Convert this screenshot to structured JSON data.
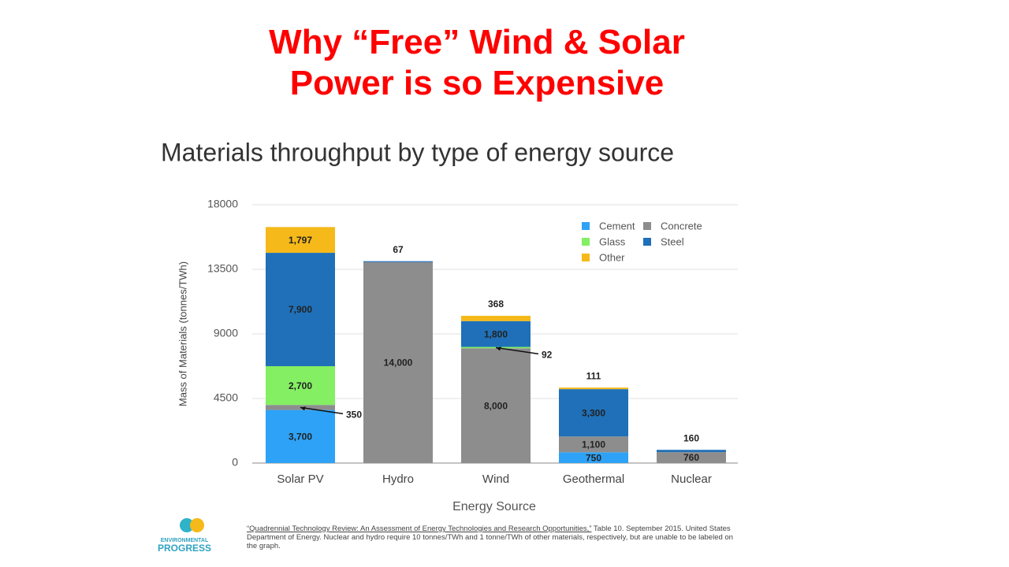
{
  "heading": [
    "Why “Free” Wind & Solar",
    "Power is so Expensive"
  ],
  "chart_data": {
    "type": "stacked-bar",
    "title": "Materials throughput by type of energy source",
    "x_label": "Energy Source",
    "y_label": "Mass of Materials (tonnes/TWh)",
    "categories": [
      "Solar PV",
      "Hydro",
      "Wind",
      "Geothermal",
      "Nuclear"
    ],
    "series": [
      {
        "name": "Cement",
        "color": "#2ea2f6",
        "values": [
          3700,
          null,
          null,
          750,
          null
        ],
        "value_labels": [
          "3,700",
          null,
          null,
          "750",
          null
        ]
      },
      {
        "name": "Concrete",
        "color": "#8d8d8d",
        "values": [
          350,
          14000,
          8000,
          1100,
          760
        ],
        "value_labels": [
          "350",
          "14,000",
          "8,000",
          "1,100",
          "760"
        ]
      },
      {
        "name": "Glass",
        "color": "#84ef62",
        "values": [
          2700,
          null,
          92,
          null,
          null
        ],
        "value_labels": [
          "2,700",
          null,
          "92",
          null,
          null
        ]
      },
      {
        "name": "Steel",
        "color": "#1f70b8",
        "values": [
          7900,
          67,
          1800,
          3300,
          160
        ],
        "value_labels": [
          "7,900",
          "67",
          "1,800",
          "3,300",
          "160"
        ]
      },
      {
        "name": "Other",
        "color": "#f6b91a",
        "values": [
          1797,
          null,
          368,
          111,
          null
        ],
        "value_labels": [
          "1,797",
          null,
          "368",
          "111",
          null
        ]
      }
    ],
    "ylim": [
      0,
      18000
    ],
    "yticks": [
      0,
      4500,
      9000,
      13500,
      18000
    ],
    "grid": true,
    "legend": "top-right"
  },
  "footnote": {
    "citation": "“Quadrennial Technology Review: An Assessment of Energy Technologies and Research Opportunities,”",
    "text": " Table 10. September 2015. United States Department of Energy. Nuclear and hydro require 10 tonnes/TWh and 1 tonne/TWh of other materials, respectively, but are unable to be labeled on the graph."
  },
  "logo": [
    "ENVIRONMENTAL",
    "PROGRESS"
  ]
}
